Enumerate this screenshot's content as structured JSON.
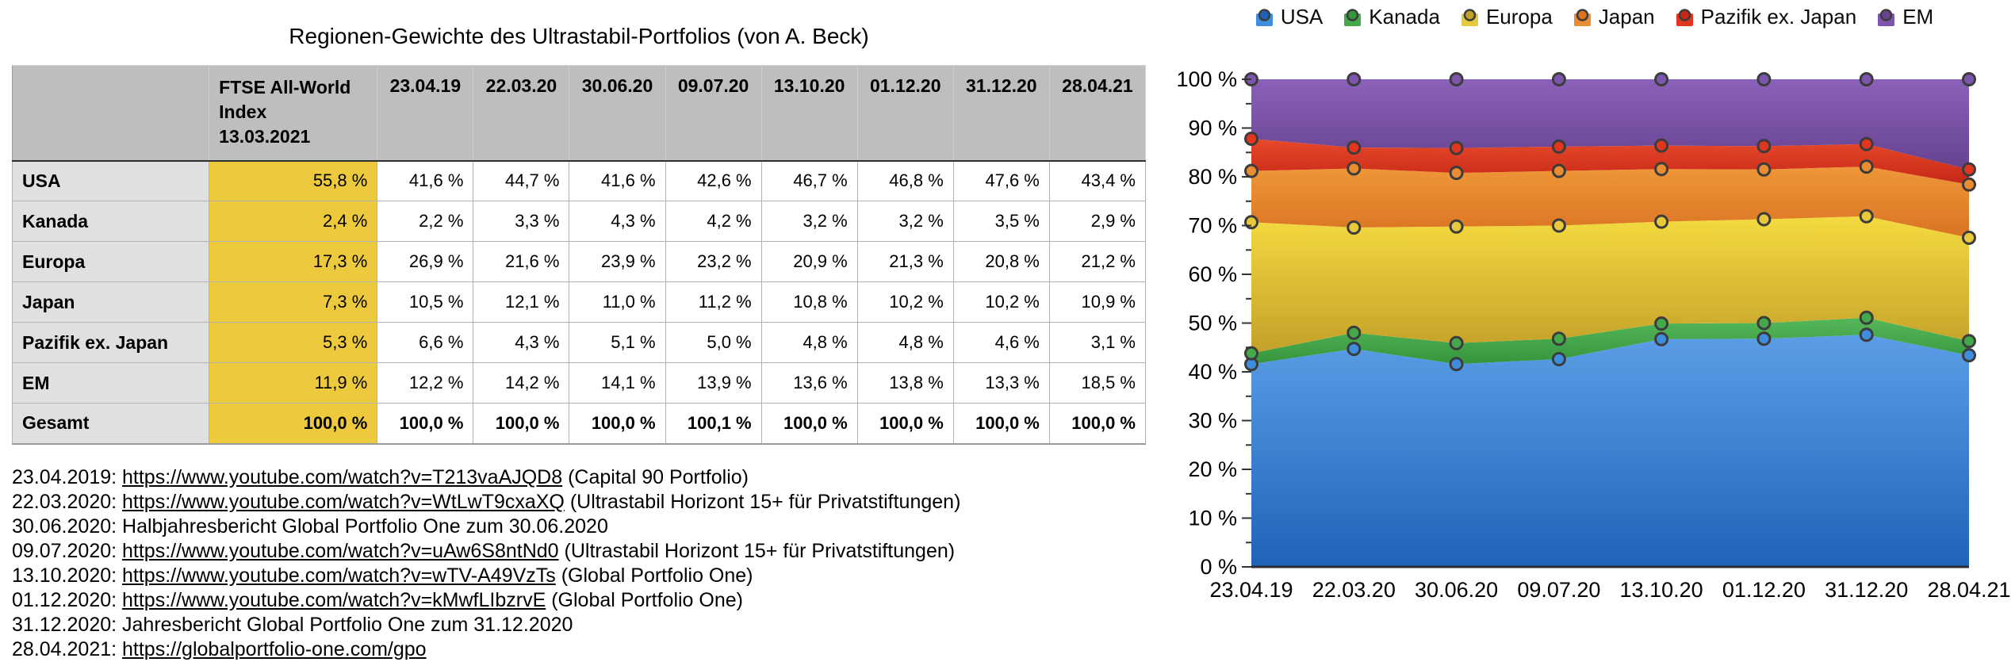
{
  "table": {
    "title": "Regionen-Gewichte des Ultrastabil-Portfolios (von A. Beck)",
    "corner_label": "",
    "col_headers": [
      "FTSE All-World Index\n13.03.2021",
      "23.04.19",
      "22.03.20",
      "30.06.20",
      "09.07.20",
      "13.10.20",
      "01.12.20",
      "31.12.20",
      "28.04.21"
    ],
    "rows": [
      {
        "label": "USA",
        "values": [
          "55,8 %",
          "41,6 %",
          "44,7 %",
          "41,6 %",
          "42,6 %",
          "46,7 %",
          "46,8 %",
          "47,6 %",
          "43,4 %"
        ],
        "bold_values": false
      },
      {
        "label": "Kanada",
        "values": [
          "2,4 %",
          "2,2 %",
          "3,3 %",
          "4,3 %",
          "4,2 %",
          "3,2 %",
          "3,2 %",
          "3,5 %",
          "2,9 %"
        ],
        "bold_values": false
      },
      {
        "label": "Europa",
        "values": [
          "17,3 %",
          "26,9 %",
          "21,6 %",
          "23,9 %",
          "23,2 %",
          "20,9 %",
          "21,3 %",
          "20,8 %",
          "21,2 %"
        ],
        "bold_values": false
      },
      {
        "label": "Japan",
        "values": [
          "7,3 %",
          "10,5 %",
          "12,1 %",
          "11,0 %",
          "11,2 %",
          "10,8 %",
          "10,2 %",
          "10,2 %",
          "10,9 %"
        ],
        "bold_values": false
      },
      {
        "label": "Pazifik ex. Japan",
        "values": [
          "5,3 %",
          "6,6 %",
          "4,3 %",
          "5,1 %",
          "5,0 %",
          "4,8 %",
          "4,8 %",
          "4,6 %",
          "3,1 %"
        ],
        "bold_values": false
      },
      {
        "label": "EM",
        "values": [
          "11,9 %",
          "12,2 %",
          "14,2 %",
          "14,1 %",
          "13,9 %",
          "13,6 %",
          "13,8 %",
          "13,3 %",
          "18,5 %"
        ],
        "bold_values": false
      },
      {
        "label": "Gesamt",
        "values": [
          "100,0 %",
          "100,0 %",
          "100,0 %",
          "100,0 %",
          "100,1 %",
          "100,0 %",
          "100,0 %",
          "100,0 %",
          "100,0 %"
        ],
        "bold_values": true
      }
    ]
  },
  "sources": [
    {
      "date": "23.04.2019",
      "link": "https://www.youtube.com/watch?v=T213vaAJQD8",
      "note": "(Capital 90 Portfolio)"
    },
    {
      "date": "22.03.2020",
      "link": "https://www.youtube.com/watch?v=WtLwT9cxaXQ",
      "note": "(Ultrastabil Horizont 15+ für Privatstiftungen)"
    },
    {
      "date": "30.06.2020",
      "text": "Halbjahresbericht Global Portfolio One zum 30.06.2020"
    },
    {
      "date": "09.07.2020",
      "link": "https://www.youtube.com/watch?v=uAw6S8ntNd0",
      "note": "(Ultrastabil Horizont 15+ für Privatstiftungen)"
    },
    {
      "date": "13.10.2020",
      "link": "https://www.youtube.com/watch?v=wTV-A49VzTs",
      "note": "(Global Portfolio One)"
    },
    {
      "date": "01.12.2020",
      "link": "https://www.youtube.com/watch?v=kMwfLIbzrvE",
      "note": "(Global Portfolio One)"
    },
    {
      "date": "31.12.2020",
      "text": "Jahresbericht Global Portfolio One zum 31.12.2020"
    },
    {
      "date": "28.04.2021",
      "link": "https://globalportfolio-one.com/gpo"
    }
  ],
  "chart_data": {
    "type": "area",
    "stacked": true,
    "x": [
      "23.04.19",
      "22.03.20",
      "30.06.20",
      "09.07.20",
      "13.10.20",
      "01.12.20",
      "31.12.20",
      "28.04.21"
    ],
    "series": [
      {
        "name": "USA",
        "values": [
          41.6,
          44.7,
          41.6,
          42.6,
          46.7,
          46.8,
          47.6,
          43.4
        ],
        "marker": "#3f8ede",
        "grad_top": "#5b9ee6",
        "grad_bottom": "#1f63b8"
      },
      {
        "name": "Kanada",
        "values": [
          2.2,
          3.3,
          4.3,
          4.2,
          3.2,
          3.2,
          3.5,
          2.9
        ],
        "marker": "#45a84a",
        "grad_top": "#55b75a",
        "grad_bottom": "#35953c"
      },
      {
        "name": "Europa",
        "values": [
          26.9,
          21.6,
          23.9,
          23.2,
          20.9,
          21.3,
          20.8,
          21.2
        ],
        "marker": "#e8c93c",
        "grad_top": "#f4da40",
        "grad_bottom": "#c3a02a"
      },
      {
        "name": "Japan",
        "values": [
          10.5,
          12.1,
          11.0,
          11.2,
          10.8,
          10.2,
          10.2,
          10.9
        ],
        "marker": "#ea8c32",
        "grad_top": "#ef9739",
        "grad_bottom": "#d97322"
      },
      {
        "name": "Pazifik ex. Japan",
        "values": [
          6.6,
          4.3,
          5.1,
          5.0,
          4.8,
          4.8,
          4.6,
          3.1
        ],
        "marker": "#e0351f",
        "grad_top": "#e74a2b",
        "grad_bottom": "#c62616"
      },
      {
        "name": "EM",
        "values": [
          12.2,
          14.2,
          14.1,
          13.9,
          13.6,
          13.8,
          13.3,
          18.5
        ],
        "marker": "#7e55ad",
        "grad_top": "#8a61b8",
        "grad_bottom": "#66428f"
      }
    ],
    "ylim": [
      0,
      100
    ],
    "ytick_major": 10,
    "ytick_minor": 5,
    "ytick_suffix": " %",
    "grid": false,
    "legend_position": "top"
  },
  "colors": {
    "table_header_bg": "#bebebe",
    "table_label_bg": "#e0e0e0",
    "ftse_col_bg": "#edc93e",
    "axis": "#2c2c36",
    "marker_ring": "#3c3c3c"
  }
}
